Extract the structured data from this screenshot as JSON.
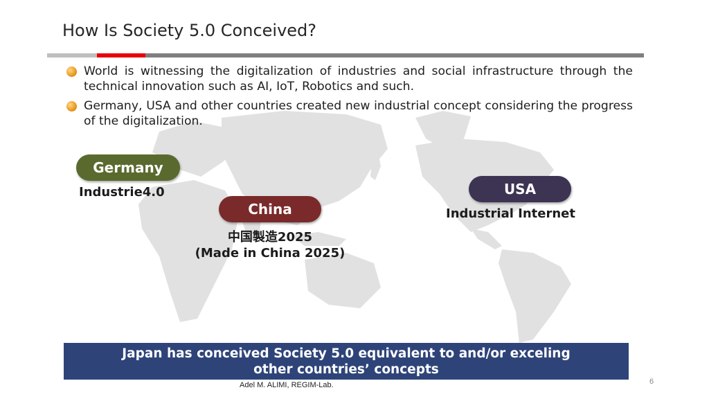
{
  "slide": {
    "title": "How Is Society 5.0 Conceived?",
    "bullets": [
      "World is witnessing the digitalization of industries and social infrastructure through the technical innovation such as AI, IoT, Robotics and such.",
      "Germany, USA and other countries created new industrial concept considering the progress of the digitalization."
    ],
    "regions": {
      "germany": {
        "name": "Germany",
        "concept": "Industrie4.0",
        "color": "#5a6a2e"
      },
      "china": {
        "name": "China",
        "concept_line1": "中国製造2025",
        "concept_line2": "(Made in China 2025)",
        "color": "#7a2a2a"
      },
      "usa": {
        "name": "USA",
        "concept": "Industrial Internet",
        "color": "#3d3352"
      }
    },
    "banner": {
      "line1": "Japan has conceived Society 5.0 equivalent to and/or exceling",
      "line2": "other countries’ concepts",
      "color": "#2e4479"
    },
    "footer": "Adel M. ALIMI, REGIM-Lab.",
    "page_number": "6",
    "accent_color": "#e8000b"
  }
}
